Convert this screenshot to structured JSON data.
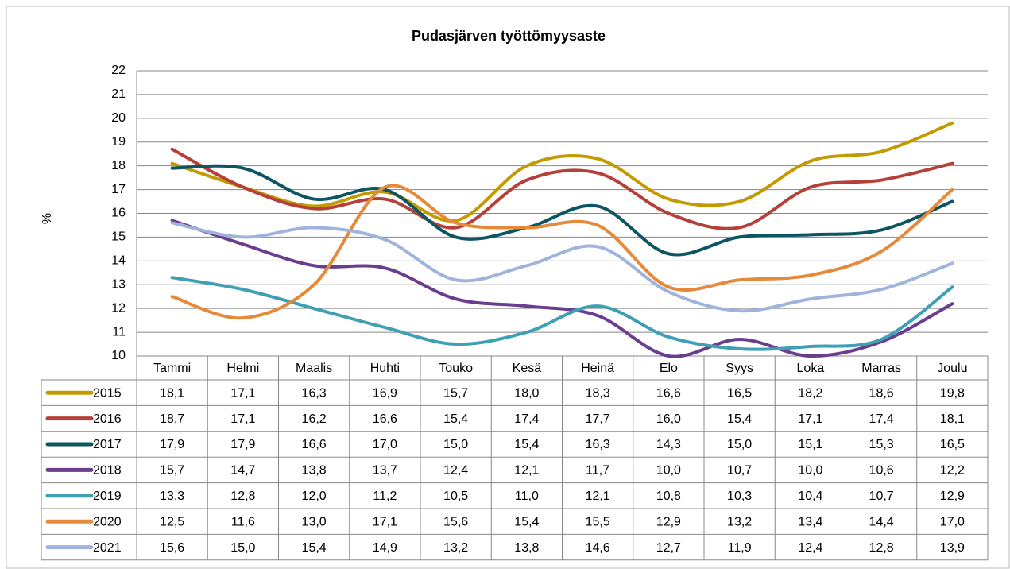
{
  "chart_data": {
    "type": "line",
    "title": "Pudasjärven työttömyysaste",
    "y_label": "%",
    "categories": [
      "Tammi",
      "Helmi",
      "Maalis",
      "Huhti",
      "Touko",
      "Kesä",
      "Heinä",
      "Elo",
      "Syys",
      "Loka",
      "Marras",
      "Joulu"
    ],
    "ylim": [
      10,
      22
    ],
    "yticks": [
      10,
      11,
      12,
      13,
      14,
      15,
      16,
      17,
      18,
      19,
      20,
      21,
      22
    ],
    "grid": true,
    "smooth": true,
    "series": [
      {
        "name": "2015",
        "color": "#c49a00",
        "values": [
          18.1,
          17.1,
          16.3,
          16.9,
          15.7,
          18.0,
          18.3,
          16.6,
          16.5,
          18.2,
          18.6,
          19.8
        ],
        "value_labels": [
          "18,1",
          "17,1",
          "16,3",
          "16,9",
          "15,7",
          "18,0",
          "18,3",
          "16,6",
          "16,5",
          "18,2",
          "18,6",
          "19,8"
        ]
      },
      {
        "name": "2016",
        "color": "#b5403a",
        "values": [
          18.7,
          17.1,
          16.2,
          16.6,
          15.4,
          17.4,
          17.7,
          16.0,
          15.4,
          17.1,
          17.4,
          18.1
        ],
        "value_labels": [
          "18,7",
          "17,1",
          "16,2",
          "16,6",
          "15,4",
          "17,4",
          "17,7",
          "16,0",
          "15,4",
          "17,1",
          "17,4",
          "18,1"
        ]
      },
      {
        "name": "2017",
        "color": "#0d5563",
        "values": [
          17.9,
          17.9,
          16.6,
          17.0,
          15.0,
          15.4,
          16.3,
          14.3,
          15.0,
          15.1,
          15.3,
          16.5
        ],
        "value_labels": [
          "17,9",
          "17,9",
          "16,6",
          "17,0",
          "15,0",
          "15,4",
          "16,3",
          "14,3",
          "15,0",
          "15,1",
          "15,3",
          "16,5"
        ]
      },
      {
        "name": "2018",
        "color": "#6a3d8f",
        "values": [
          15.7,
          14.7,
          13.8,
          13.7,
          12.4,
          12.1,
          11.7,
          10.0,
          10.7,
          10.0,
          10.6,
          12.2
        ],
        "value_labels": [
          "15,7",
          "14,7",
          "13,8",
          "13,7",
          "12,4",
          "12,1",
          "11,7",
          "10,0",
          "10,7",
          "10,0",
          "10,6",
          "12,2"
        ]
      },
      {
        "name": "2019",
        "color": "#3fa0b5",
        "values": [
          13.3,
          12.8,
          12.0,
          11.2,
          10.5,
          11.0,
          12.1,
          10.8,
          10.3,
          10.4,
          10.7,
          12.9
        ],
        "value_labels": [
          "13,3",
          "12,8",
          "12,0",
          "11,2",
          "10,5",
          "11,0",
          "12,1",
          "10,8",
          "10,3",
          "10,4",
          "10,7",
          "12,9"
        ]
      },
      {
        "name": "2020",
        "color": "#e58a3a",
        "values": [
          12.5,
          11.6,
          13.0,
          17.1,
          15.6,
          15.4,
          15.5,
          12.9,
          13.2,
          13.4,
          14.4,
          17.0
        ],
        "value_labels": [
          "12,5",
          "11,6",
          "13,0",
          "17,1",
          "15,6",
          "15,4",
          "15,5",
          "12,9",
          "13,2",
          "13,4",
          "14,4",
          "17,0"
        ]
      },
      {
        "name": "2021",
        "color": "#9fb3dd",
        "values": [
          15.6,
          15.0,
          15.4,
          14.9,
          13.2,
          13.8,
          14.6,
          12.7,
          11.9,
          12.4,
          12.8,
          13.9
        ],
        "value_labels": [
          "15,6",
          "15,0",
          "15,4",
          "14,9",
          "13,2",
          "13,8",
          "14,6",
          "12,7",
          "11,9",
          "12,4",
          "12,8",
          "13,9"
        ]
      }
    ]
  }
}
